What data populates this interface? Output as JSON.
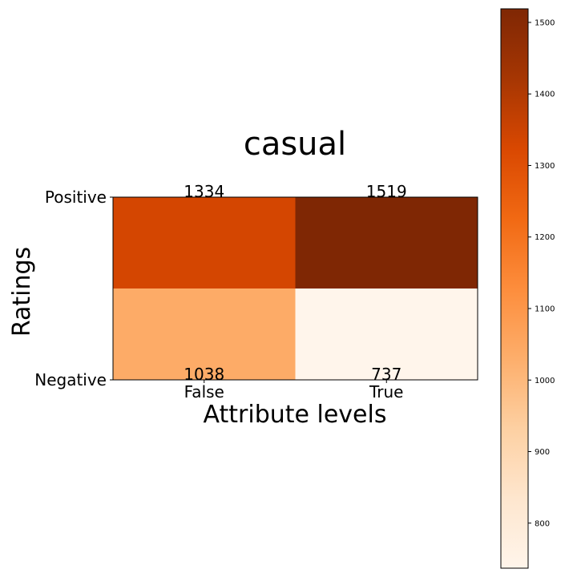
{
  "chart_data": {
    "type": "heatmap",
    "title": "casual",
    "xlabel": "Attribute levels",
    "ylabel": "Ratings",
    "x_categories": [
      "False",
      "True"
    ],
    "y_categories": [
      "Positive",
      "Negative"
    ],
    "values": [
      [
        1334,
        1519
      ],
      [
        1038,
        737
      ]
    ],
    "colormap": "Oranges",
    "color_range": [
      737,
      1519
    ],
    "colorbar_ticks": [
      800,
      900,
      1000,
      1100,
      1200,
      1300,
      1400,
      1500
    ],
    "colorbar_tick_labels": [
      "800",
      "900",
      "1000",
      "1100",
      "1200",
      "1300",
      "1400",
      "1500"
    ]
  }
}
